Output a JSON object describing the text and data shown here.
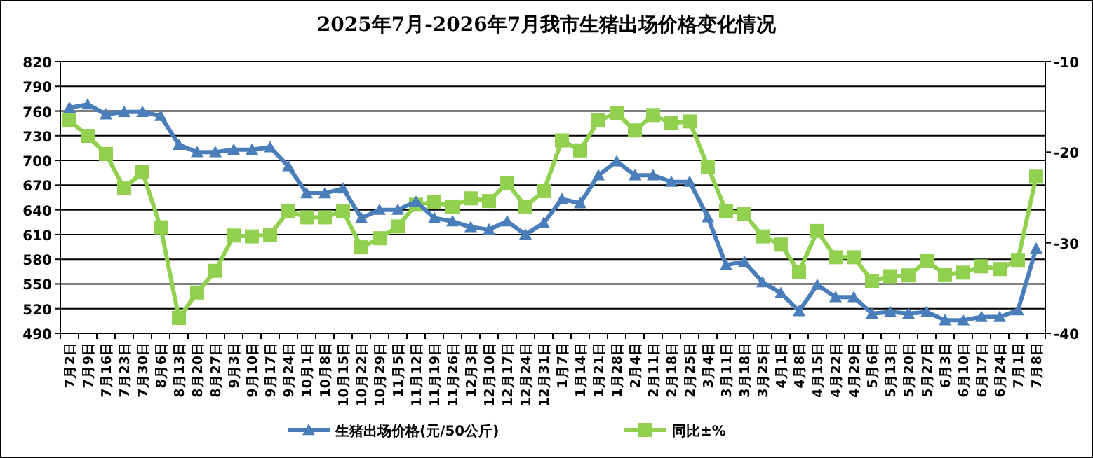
{
  "chart_data": {
    "type": "line",
    "title": "2025年7月-2026年7月我市生猪出场价格变化情况",
    "categories": [
      "7月2日",
      "7月9日",
      "7月16日",
      "7月23日",
      "7月30日",
      "8月6日",
      "8月13日",
      "8月20日",
      "8月27日",
      "9月3日",
      "9月10日",
      "9月17日",
      "9月24日",
      "10月1日",
      "10月8日",
      "10月15日",
      "10月22日",
      "10月29日",
      "11月5日",
      "11月12日",
      "11月19日",
      "11月26日",
      "12月3日",
      "12月10日",
      "12月17日",
      "12月24日",
      "12月31日",
      "1月7日",
      "1月14日",
      "1月21日",
      "1月28日",
      "2月4日",
      "2月11日",
      "2月18日",
      "2月25日",
      "3月4日",
      "3月11日",
      "3月18日",
      "3月25日",
      "4月1日",
      "4月8日",
      "4月15日",
      "4月22日",
      "4月29日",
      "5月6日",
      "5月13日",
      "5月20日",
      "5月27日",
      "6月3日",
      "6月10日",
      "6月17日",
      "6月24日",
      "7月1日",
      "7月8日"
    ],
    "series": [
      {
        "name": "生猪出场价格(元/50公斤)",
        "color": "#4a7ebb",
        "marker": "triangle",
        "values": [
          764,
          768,
          756,
          759,
          759,
          754,
          719,
          710,
          710,
          713,
          713,
          716,
          693,
          660,
          660,
          666,
          630,
          640,
          640,
          650,
          630,
          626,
          619,
          616,
          626,
          610,
          624,
          653,
          648,
          682,
          699,
          682,
          682,
          674,
          674,
          631,
          573,
          577,
          552,
          539,
          517,
          549,
          534,
          534,
          514,
          516,
          514,
          516,
          506,
          506,
          510,
          510,
          518,
          593
        ]
      },
      {
        "name": "同比±%",
        "color": "#92d050",
        "marker": "square",
        "axis": "y2",
        "values": [
          -16.5,
          -18.2,
          -20.2,
          -24.0,
          -22.2,
          -28.3,
          -38.3,
          -35.5,
          -33.1,
          -29.2,
          -29.3,
          -29.1,
          -26.5,
          -27.2,
          -27.2,
          -26.5,
          -30.5,
          -29.5,
          -28.2,
          -25.8,
          -25.5,
          -26.0,
          -25.1,
          -25.4,
          -23.4,
          -26.0,
          -24.3,
          -18.7,
          -19.8,
          -16.5,
          -15.7,
          -17.6,
          -15.9,
          -16.8,
          -16.6,
          -21.6,
          -26.5,
          -26.8,
          -29.3,
          -30.2,
          -33.2,
          -28.7,
          -31.6,
          -31.6,
          -34.2,
          -33.7,
          -33.6,
          -32.0,
          -33.5,
          -33.3,
          -32.6,
          -32.9,
          -31.9,
          -22.7
        ]
      }
    ],
    "ylim": [
      490,
      820
    ],
    "yticks": [
      490,
      520,
      550,
      580,
      610,
      640,
      670,
      700,
      730,
      760,
      790,
      820
    ],
    "y2lim": [
      -40,
      -10
    ],
    "y2ticks": [
      -40,
      -30,
      -20,
      -10
    ],
    "grid": "y",
    "legend": "bottom",
    "line_style": "solid"
  }
}
